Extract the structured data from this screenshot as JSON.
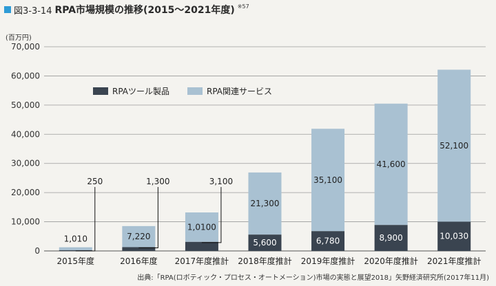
{
  "figure": {
    "label": "図3-3-14",
    "title": "RPA市場規模の推移(2015〜2021年度)",
    "note": "※57",
    "unit": "(百万円)",
    "source": "出典:「RPA(ロボティック・プロセス・オートメーション)市場の実態と展望2018」矢野経済研究所(2017年11月)"
  },
  "colors": {
    "tool": "#3a4450",
    "service": "#a9c1d2",
    "leader": "#111111"
  },
  "chart_data": {
    "type": "bar",
    "stacked": true,
    "categories": [
      "2015年度",
      "2016年度",
      "2017年度推計",
      "2018年度推計",
      "2019年度推計",
      "2020年度推計",
      "2021年度推計"
    ],
    "series": [
      {
        "name": "RPAツール製品",
        "values": [
          250,
          1300,
          3100,
          5600,
          6780,
          8900,
          10030
        ]
      },
      {
        "name": "RPA関連サービス",
        "values": [
          1010,
          7220,
          10100,
          21300,
          35100,
          41600,
          52100
        ]
      }
    ],
    "labels": {
      "tool": [
        "250",
        "1,300",
        "3,100",
        "5,600",
        "6,780",
        "8,900",
        "10,030"
      ],
      "service": [
        "1,010",
        "7,220",
        "1,0100",
        "21,300",
        "35,100",
        "41,600",
        "52,100"
      ]
    },
    "yticks": [
      "0",
      "10,000",
      "20,000",
      "30,000",
      "40,000",
      "50,000",
      "60,000",
      "70,000"
    ],
    "ylim": [
      0,
      70000
    ],
    "grid": true,
    "legend_position": "top-left"
  }
}
